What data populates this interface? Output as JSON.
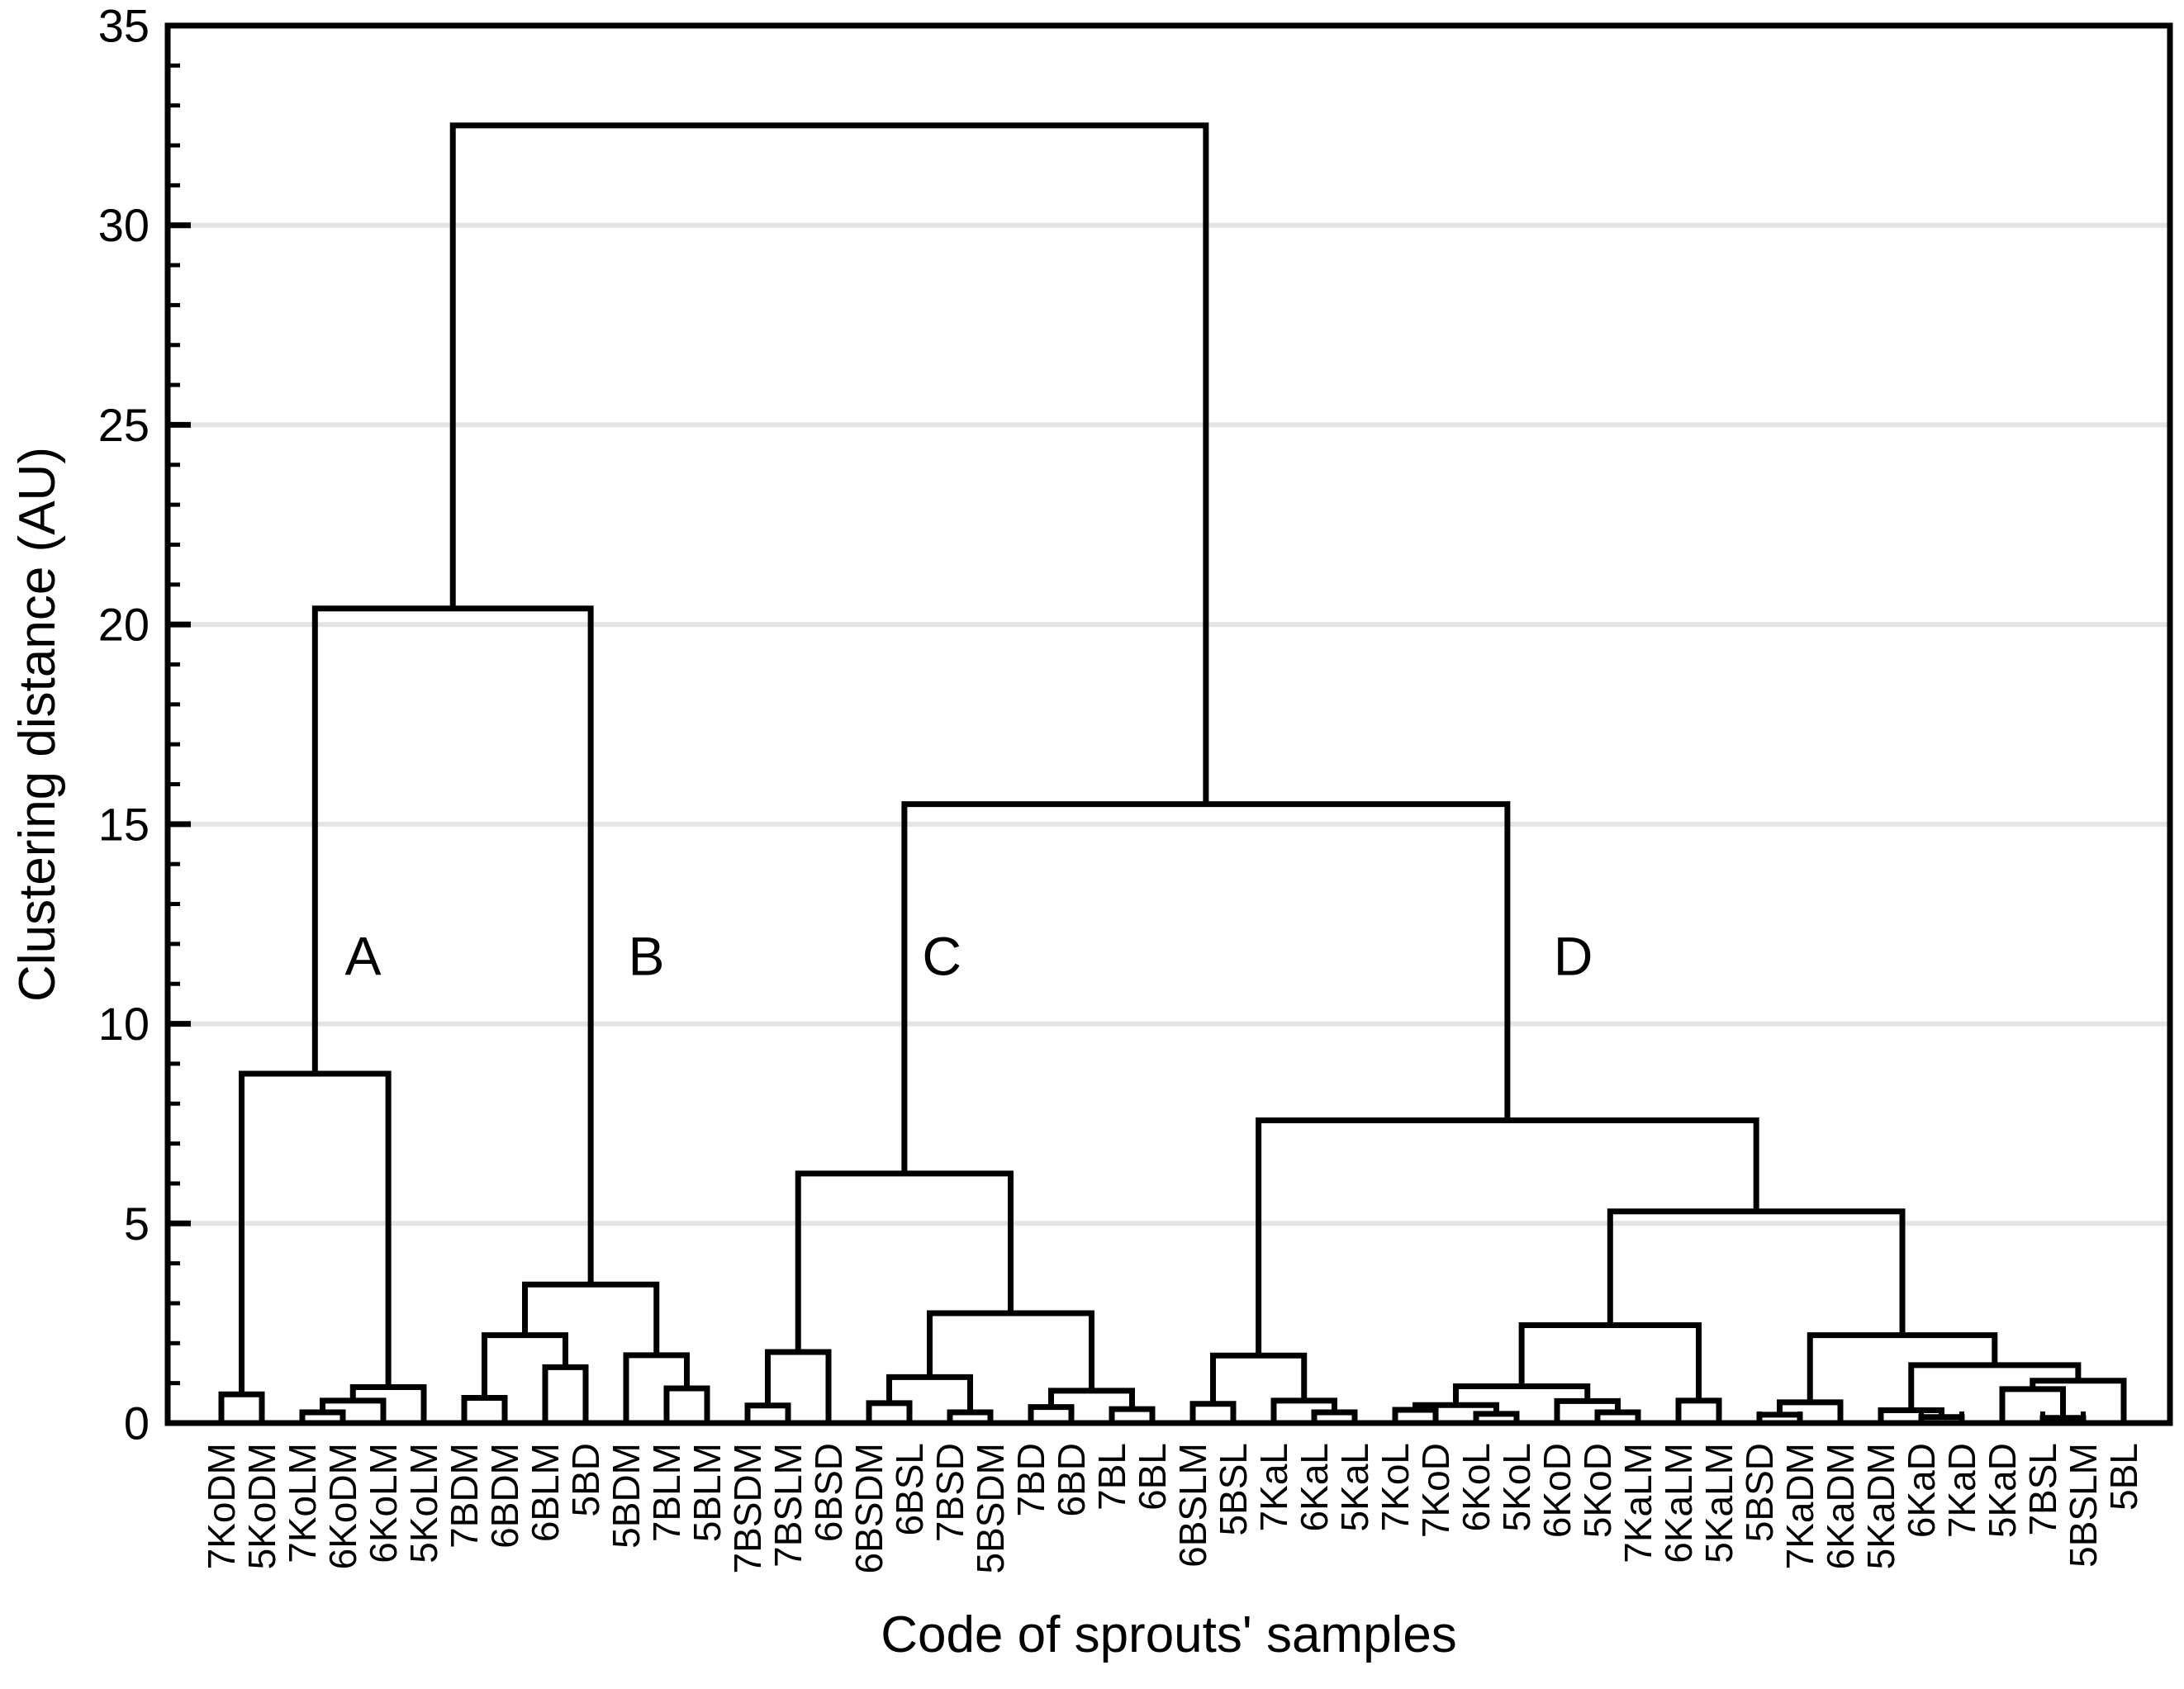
{
  "chart_data": {
    "type": "dendrogram",
    "title": "",
    "xlabel": "Code of sprouts' samples",
    "ylabel": "Clustering distance (AU)",
    "ylim": [
      0,
      35
    ],
    "y_major_ticks": [
      0,
      5,
      10,
      15,
      20,
      25,
      30,
      35
    ],
    "y_minor_tick_step": 1,
    "gridline_values": [
      5,
      10,
      15,
      20,
      25,
      30
    ],
    "grid_on": true,
    "legend": "none",
    "leaves": [
      "7KoDM",
      "5KoDM",
      "7KoLM",
      "6KoDM",
      "6KoLM",
      "5KoLM",
      "7BDM",
      "6BDM",
      "6BLM",
      "5BD",
      "5BDM",
      "7BLM",
      "5BLM",
      "7BSDM",
      "7BSLM",
      "6BSD",
      "6BSDM",
      "6BSL",
      "7BSD",
      "5BSDM",
      "7BD",
      "6BD",
      "7BL",
      "6BL",
      "6BSLM",
      "5BSL",
      "7KaL",
      "6KaL",
      "5KaL",
      "7KoL",
      "7KoD",
      "6KoL",
      "5KoL",
      "6KoD",
      "5KoD",
      "7KaLM",
      "6KaLM",
      "5KaLM",
      "5BSD",
      "7KaDM",
      "6KaDM",
      "5KaDM",
      "6KaD",
      "7KaD",
      "5KaD",
      "7BSL",
      "5BSLM",
      "5BL"
    ],
    "merges": [
      [
        0,
        1,
        0.72
      ],
      [
        2,
        3,
        0.27
      ],
      [
        49,
        4,
        0.56
      ],
      [
        50,
        5,
        0.9
      ],
      [
        48,
        51,
        8.75
      ],
      [
        6,
        7,
        0.63
      ],
      [
        8,
        9,
        1.4
      ],
      [
        53,
        54,
        2.2
      ],
      [
        11,
        12,
        0.87
      ],
      [
        10,
        56,
        1.7
      ],
      [
        55,
        57,
        3.47
      ],
      [
        52,
        58,
        20.4
      ],
      [
        13,
        14,
        0.44
      ],
      [
        60,
        15,
        1.78
      ],
      [
        16,
        17,
        0.5
      ],
      [
        18,
        19,
        0.27
      ],
      [
        62,
        63,
        1.15
      ],
      [
        20,
        21,
        0.4
      ],
      [
        22,
        23,
        0.35
      ],
      [
        65,
        66,
        0.81
      ],
      [
        64,
        67,
        2.75
      ],
      [
        61,
        68,
        6.25
      ],
      [
        24,
        25,
        0.48
      ],
      [
        27,
        28,
        0.27
      ],
      [
        26,
        71,
        0.56
      ],
      [
        70,
        72,
        1.69
      ],
      [
        29,
        30,
        0.33
      ],
      [
        31,
        32,
        0.23
      ],
      [
        74,
        75,
        0.45
      ],
      [
        34,
        35,
        0.27
      ],
      [
        33,
        77,
        0.55
      ],
      [
        76,
        78,
        0.92
      ],
      [
        36,
        37,
        0.56
      ],
      [
        79,
        80,
        2.45
      ],
      [
        38,
        39,
        0.21
      ],
      [
        82,
        40,
        0.52
      ],
      [
        42,
        43,
        0.15
      ],
      [
        41,
        84,
        0.32
      ],
      [
        45,
        46,
        0.13
      ],
      [
        44,
        86,
        0.85
      ],
      [
        87,
        47,
        1.06
      ],
      [
        85,
        88,
        1.45
      ],
      [
        83,
        89,
        2.2
      ],
      [
        81,
        90,
        5.3
      ],
      [
        73,
        91,
        7.58
      ],
      [
        69,
        92,
        15.5
      ],
      [
        59,
        93,
        32.5
      ]
    ],
    "cluster_labels": [
      {
        "text": "A",
        "x_leaf_units": 3.5,
        "value": 11.7
      },
      {
        "text": "B",
        "x_leaf_units": 10.5,
        "value": 11.7
      },
      {
        "text": "C",
        "x_leaf_units": 17.8,
        "value": 11.7
      },
      {
        "text": "D",
        "x_leaf_units": 33.4,
        "value": 11.7
      }
    ],
    "colors": {
      "line": "#000000",
      "grid": "#e4e4e4",
      "background": "#ffffff",
      "text": "#000000"
    }
  }
}
